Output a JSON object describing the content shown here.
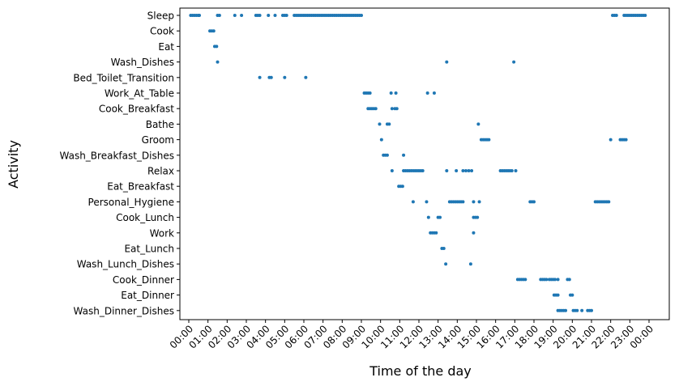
{
  "chart_data": {
    "type": "scatter",
    "title": "",
    "xlabel": "Time of the day",
    "ylabel": "Activity",
    "xlim": [
      -0.75,
      24.75
    ],
    "grid": false,
    "marker_color": "#1f77b4",
    "x_ticks": [
      {
        "value": 0,
        "label": "00:00"
      },
      {
        "value": 1,
        "label": "01:00"
      },
      {
        "value": 2,
        "label": "02:00"
      },
      {
        "value": 3,
        "label": "03:00"
      },
      {
        "value": 4,
        "label": "04:00"
      },
      {
        "value": 5,
        "label": "05:00"
      },
      {
        "value": 6,
        "label": "06:00"
      },
      {
        "value": 7,
        "label": "07:00"
      },
      {
        "value": 8,
        "label": "08:00"
      },
      {
        "value": 9,
        "label": "09:00"
      },
      {
        "value": 10,
        "label": "10:00"
      },
      {
        "value": 11,
        "label": "11:00"
      },
      {
        "value": 12,
        "label": "12:00"
      },
      {
        "value": 13,
        "label": "13:00"
      },
      {
        "value": 14,
        "label": "14:00"
      },
      {
        "value": 15,
        "label": "15:00"
      },
      {
        "value": 16,
        "label": "16:00"
      },
      {
        "value": 17,
        "label": "17:00"
      },
      {
        "value": 18,
        "label": "18:00"
      },
      {
        "value": 19,
        "label": "19:00"
      },
      {
        "value": 20,
        "label": "20:00"
      },
      {
        "value": 21,
        "label": "21:00"
      },
      {
        "value": 22,
        "label": "22:00"
      },
      {
        "value": 23,
        "label": "23:00"
      },
      {
        "value": 24,
        "label": "00:00"
      }
    ],
    "categories": [
      "Sleep",
      "Cook",
      "Eat",
      "Wash_Dishes",
      "Bed_Toilet_Transition",
      "Work_At_Table",
      "Cook_Breakfast",
      "Bathe",
      "Groom",
      "Wash_Breakfast_Dishes",
      "Relax",
      "Eat_Breakfast",
      "Personal_Hygiene",
      "Cook_Lunch",
      "Work",
      "Eat_Lunch",
      "Wash_Lunch_Dishes",
      "Cook_Dinner",
      "Eat_Dinner",
      "Wash_Dinner_Dishes"
    ],
    "series": [
      {
        "category": "Sleep",
        "x": [
          0.1,
          0.2,
          0.3,
          0.4,
          0.5,
          0.55,
          1.5,
          1.6,
          2.4,
          2.75,
          3.5,
          3.6,
          3.7,
          4.15,
          4.5,
          4.9,
          5.0,
          5.1,
          5.5,
          5.6,
          5.7,
          5.8,
          5.9,
          6.0,
          6.1,
          6.2,
          6.3,
          6.4,
          6.5,
          6.6,
          6.7,
          6.8,
          6.9,
          7.0,
          7.1,
          7.2,
          7.3,
          7.4,
          7.5,
          7.6,
          7.7,
          7.8,
          7.9,
          8.0,
          8.1,
          8.2,
          8.3,
          8.4,
          8.5,
          8.6,
          8.7,
          8.8,
          8.9,
          9.0,
          22.1,
          22.2,
          22.3,
          22.7,
          22.8,
          22.9,
          23.0,
          23.1,
          23.2,
          23.3,
          23.4,
          23.5,
          23.6,
          23.7,
          23.8
        ]
      },
      {
        "category": "Cook",
        "x": [
          1.1,
          1.2,
          1.3
        ]
      },
      {
        "category": "Eat",
        "x": [
          1.35,
          1.45
        ]
      },
      {
        "category": "Wash_Dishes",
        "x": [
          1.5,
          13.45,
          16.95
        ]
      },
      {
        "category": "Bed_Toilet_Transition",
        "x": [
          3.7,
          4.2,
          4.3,
          5.0,
          6.1
        ]
      },
      {
        "category": "Work_At_Table",
        "x": [
          9.15,
          9.25,
          9.35,
          9.45,
          10.55,
          10.8,
          12.45,
          12.8
        ]
      },
      {
        "category": "Cook_Breakfast",
        "x": [
          9.35,
          9.45,
          9.55,
          9.65,
          9.75,
          10.6,
          10.75,
          10.85
        ]
      },
      {
        "category": "Bathe",
        "x": [
          9.95,
          10.35,
          10.45,
          15.1
        ]
      },
      {
        "category": "Groom",
        "x": [
          10.05,
          15.25,
          15.35,
          15.45,
          15.55,
          15.65,
          22.0,
          22.5,
          22.6,
          22.7,
          22.8
        ]
      },
      {
        "category": "Wash_Breakfast_Dishes",
        "x": [
          10.15,
          10.25,
          10.35,
          11.2
        ]
      },
      {
        "category": "Relax",
        "x": [
          10.6,
          11.2,
          11.3,
          11.4,
          11.5,
          11.6,
          11.7,
          11.8,
          11.9,
          12.0,
          12.1,
          12.2,
          13.45,
          13.95,
          14.3,
          14.45,
          14.6,
          14.75,
          16.25,
          16.35,
          16.45,
          16.55,
          16.65,
          16.75,
          16.85,
          17.05
        ]
      },
      {
        "category": "Eat_Breakfast",
        "x": [
          10.95,
          11.05,
          11.15
        ]
      },
      {
        "category": "Personal_Hygiene",
        "x": [
          11.7,
          12.4,
          13.6,
          13.7,
          13.8,
          13.9,
          14.0,
          14.1,
          14.2,
          14.3,
          14.85,
          15.15,
          17.8,
          17.9,
          18.0,
          21.2,
          21.3,
          21.4,
          21.5,
          21.6,
          21.7,
          21.8,
          21.9
        ]
      },
      {
        "category": "Cook_Lunch",
        "x": [
          12.5,
          13.0,
          13.1,
          14.85,
          14.95,
          15.05
        ]
      },
      {
        "category": "Work",
        "x": [
          12.6,
          12.7,
          12.8,
          12.9,
          14.85
        ]
      },
      {
        "category": "Eat_Lunch",
        "x": [
          13.2,
          13.3
        ]
      },
      {
        "category": "Wash_Lunch_Dishes",
        "x": [
          13.4,
          14.7
        ]
      },
      {
        "category": "Cook_Dinner",
        "x": [
          17.15,
          17.25,
          17.35,
          17.45,
          17.55,
          18.35,
          18.45,
          18.55,
          18.65,
          18.8,
          18.9,
          19.0,
          19.1,
          19.25,
          19.75,
          19.85
        ]
      },
      {
        "category": "Eat_Dinner",
        "x": [
          19.05,
          19.15,
          19.25,
          19.9,
          20.0
        ]
      },
      {
        "category": "Wash_Dinner_Dishes",
        "x": [
          19.25,
          19.35,
          19.45,
          19.55,
          19.65,
          20.05,
          20.15,
          20.25,
          20.5,
          20.8,
          20.9,
          21.0
        ]
      }
    ]
  }
}
